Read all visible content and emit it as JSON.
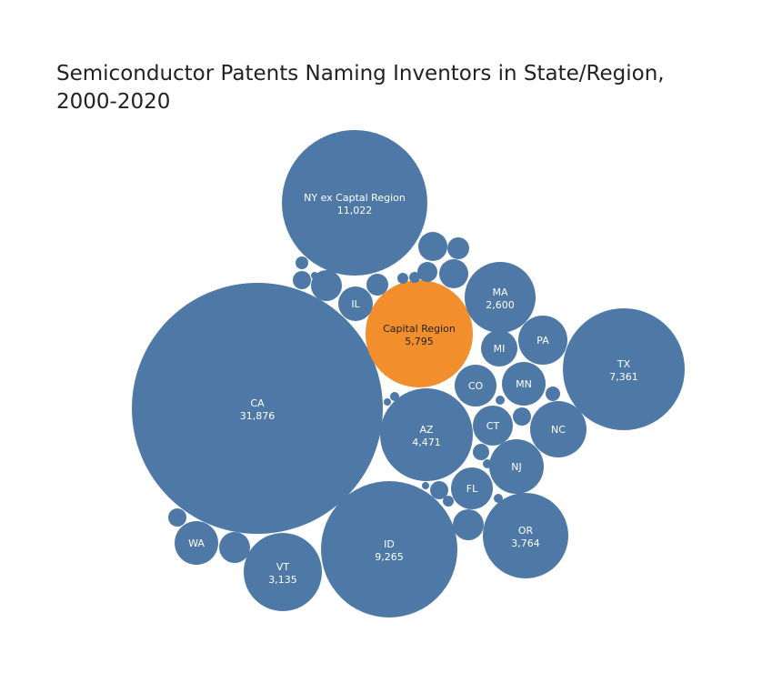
{
  "chart_data": {
    "type": "bubble",
    "title_lines": [
      "Semiconductor Patents Naming Inventors in State/Region,",
      "2000-2020"
    ],
    "colors": {
      "default": "#4E79A7",
      "highlight": "#F28E2B"
    },
    "bubbles": [
      {
        "label": "CA",
        "value": 31876,
        "value_text": "31,876",
        "highlight": false
      },
      {
        "label": "NY ex Captal Region",
        "value": 11022,
        "value_text": "11,022",
        "highlight": false
      },
      {
        "label": "ID",
        "value": 9265,
        "value_text": "9,265",
        "highlight": false
      },
      {
        "label": "TX",
        "value": 7361,
        "value_text": "7,361",
        "highlight": false
      },
      {
        "label": "Capital Region",
        "value": 5795,
        "value_text": "5,795",
        "highlight": true
      },
      {
        "label": "AZ",
        "value": 4471,
        "value_text": "4,471",
        "highlight": false
      },
      {
        "label": "OR",
        "value": 3764,
        "value_text": "3,764",
        "highlight": false
      },
      {
        "label": "VT",
        "value": 3135,
        "value_text": "3,135",
        "highlight": false
      },
      {
        "label": "MA",
        "value": 2600,
        "value_text": "2,600",
        "highlight": false
      },
      {
        "label": "NC",
        "value": null,
        "value_text": "",
        "highlight": false
      },
      {
        "label": "NJ",
        "value": null,
        "value_text": "",
        "highlight": false
      },
      {
        "label": "PA",
        "value": null,
        "value_text": "",
        "highlight": false
      },
      {
        "label": "WA",
        "value": null,
        "value_text": "",
        "highlight": false
      },
      {
        "label": "MN",
        "value": null,
        "value_text": "",
        "highlight": false
      },
      {
        "label": "FL",
        "value": null,
        "value_text": "",
        "highlight": false
      },
      {
        "label": "CT",
        "value": null,
        "value_text": "",
        "highlight": false
      },
      {
        "label": "CO",
        "value": null,
        "value_text": "",
        "highlight": false
      },
      {
        "label": "MI",
        "value": null,
        "value_text": "",
        "highlight": false
      },
      {
        "label": "IL",
        "value": null,
        "value_text": "",
        "highlight": false
      },
      {
        "label": "",
        "value": null,
        "value_text": "",
        "highlight": false
      },
      {
        "label": "",
        "value": null,
        "value_text": "",
        "highlight": false
      },
      {
        "label": "",
        "value": null,
        "value_text": "",
        "highlight": false
      },
      {
        "label": "",
        "value": null,
        "value_text": "",
        "highlight": false
      },
      {
        "label": "",
        "value": null,
        "value_text": "",
        "highlight": false
      },
      {
        "label": "",
        "value": null,
        "value_text": "",
        "highlight": false
      },
      {
        "label": "",
        "value": null,
        "value_text": "",
        "highlight": false
      },
      {
        "label": "",
        "value": null,
        "value_text": "",
        "highlight": false
      },
      {
        "label": "",
        "value": null,
        "value_text": "",
        "highlight": false
      },
      {
        "label": "",
        "value": null,
        "value_text": "",
        "highlight": false
      },
      {
        "label": "",
        "value": null,
        "value_text": "",
        "highlight": false
      },
      {
        "label": "",
        "value": null,
        "value_text": "",
        "highlight": false
      },
      {
        "label": "",
        "value": null,
        "value_text": "",
        "highlight": false
      },
      {
        "label": "",
        "value": null,
        "value_text": "",
        "highlight": false
      },
      {
        "label": "",
        "value": null,
        "value_text": "",
        "highlight": false
      },
      {
        "label": "",
        "value": null,
        "value_text": "",
        "highlight": false
      },
      {
        "label": "",
        "value": null,
        "value_text": "",
        "highlight": false
      },
      {
        "label": "",
        "value": null,
        "value_text": "",
        "highlight": false
      },
      {
        "label": "",
        "value": null,
        "value_text": "",
        "highlight": false
      },
      {
        "label": "",
        "value": null,
        "value_text": "",
        "highlight": false
      },
      {
        "label": "",
        "value": null,
        "value_text": "",
        "highlight": false
      },
      {
        "label": "",
        "value": null,
        "value_text": "",
        "highlight": false
      },
      {
        "label": "",
        "value": null,
        "value_text": "",
        "highlight": false
      },
      {
        "label": "",
        "value": null,
        "value_text": "",
        "highlight": false
      },
      {
        "label": "",
        "value": null,
        "value_text": "",
        "highlight": false
      }
    ]
  }
}
